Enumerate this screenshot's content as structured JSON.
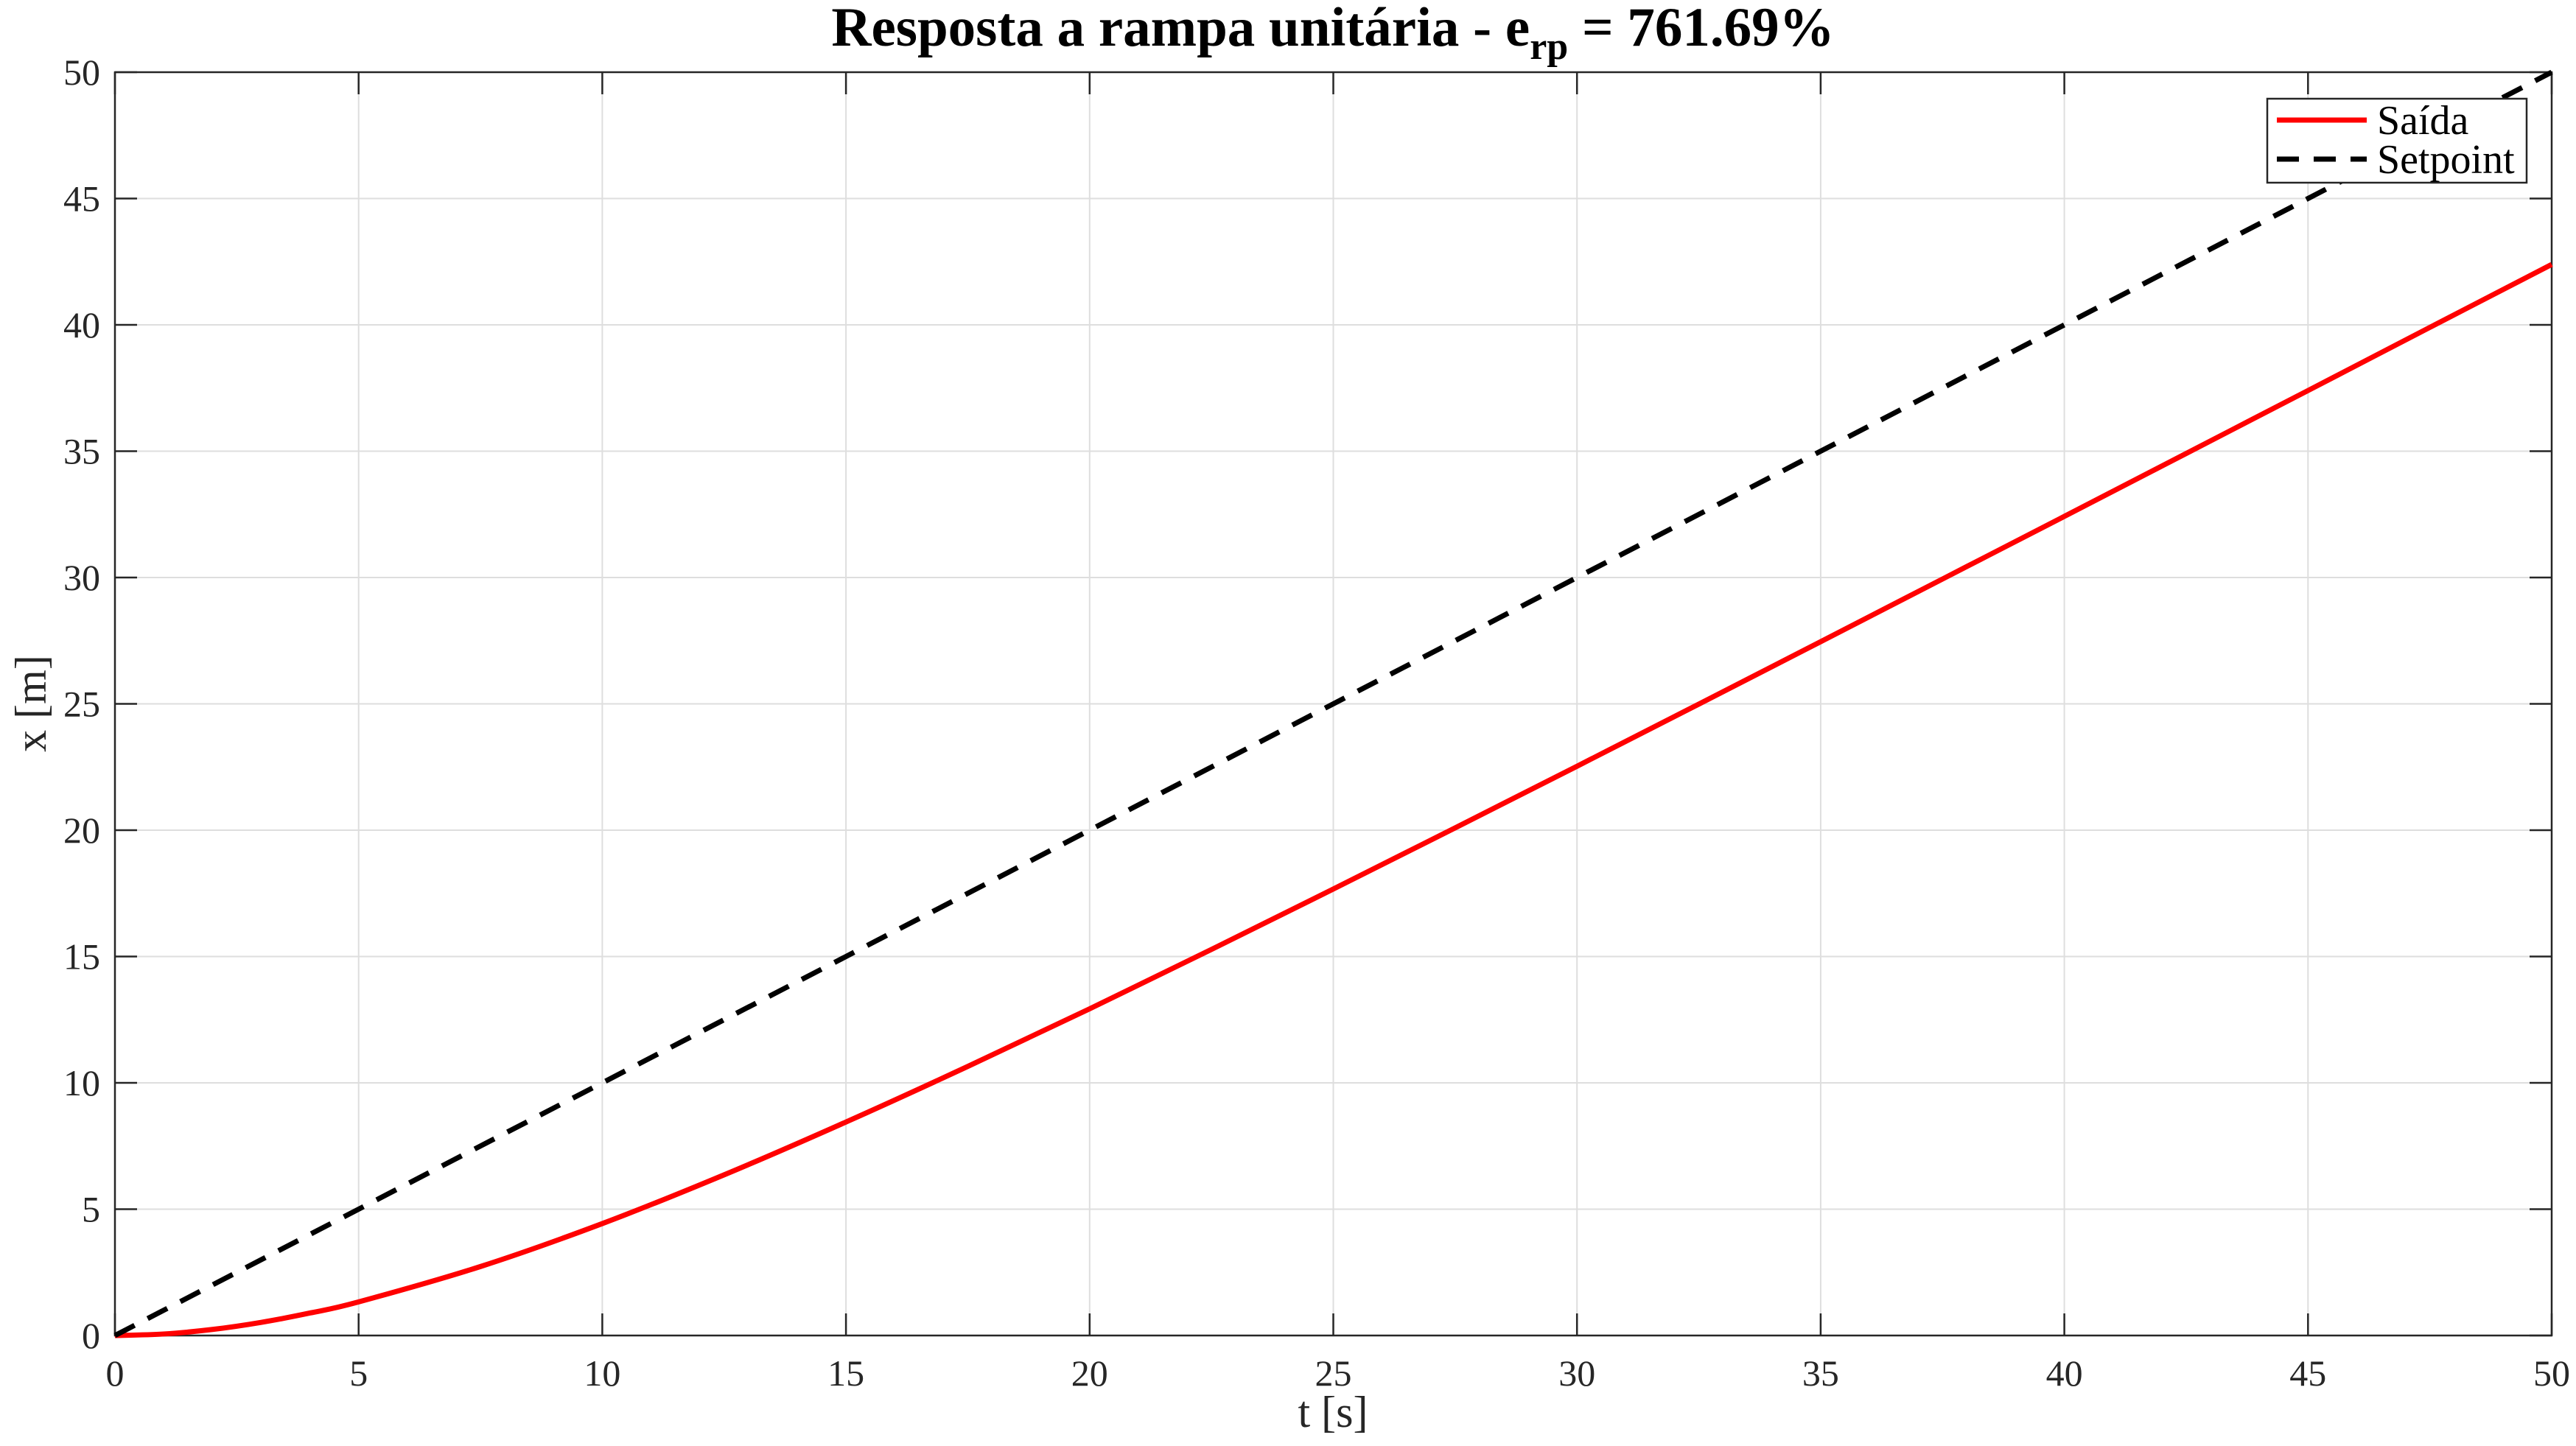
{
  "chart_data": {
    "type": "line",
    "title": {
      "main": "Resposta a rampa unitária - e",
      "subscript": "rp",
      "suffix": " = 761.69%"
    },
    "xlabel": "t [s]",
    "ylabel": "x [m]",
    "xlim": [
      0,
      50
    ],
    "ylim": [
      0,
      50
    ],
    "x_ticks": [
      0,
      5,
      10,
      15,
      20,
      25,
      30,
      35,
      40,
      45,
      50
    ],
    "y_ticks": [
      0,
      5,
      10,
      15,
      20,
      25,
      30,
      35,
      40,
      45,
      50
    ],
    "grid": true,
    "legend": {
      "position": "top-right"
    },
    "series": [
      {
        "name": "Saída",
        "color": "#ff0000",
        "line_style": "solid",
        "x": [
          0,
          1,
          2,
          3,
          4,
          5,
          7.5,
          10,
          12.5,
          15,
          17.5,
          20,
          22.5,
          25,
          27.5,
          30,
          32.5,
          35,
          37.5,
          40,
          42.5,
          45,
          47.5,
          50
        ],
        "y": [
          0,
          0.06,
          0.24,
          0.52,
          0.89,
          1.33,
          2.73,
          4.43,
          6.36,
          8.45,
          10.65,
          12.93,
          15.28,
          17.67,
          20.09,
          22.53,
          24.99,
          27.46,
          29.94,
          32.42,
          34.91,
          37.4,
          39.9,
          42.39
        ]
      },
      {
        "name": "Setpoint",
        "color": "#000000",
        "line_style": "dashed",
        "x": [
          0,
          50
        ],
        "y": [
          0,
          50
        ]
      }
    ]
  }
}
